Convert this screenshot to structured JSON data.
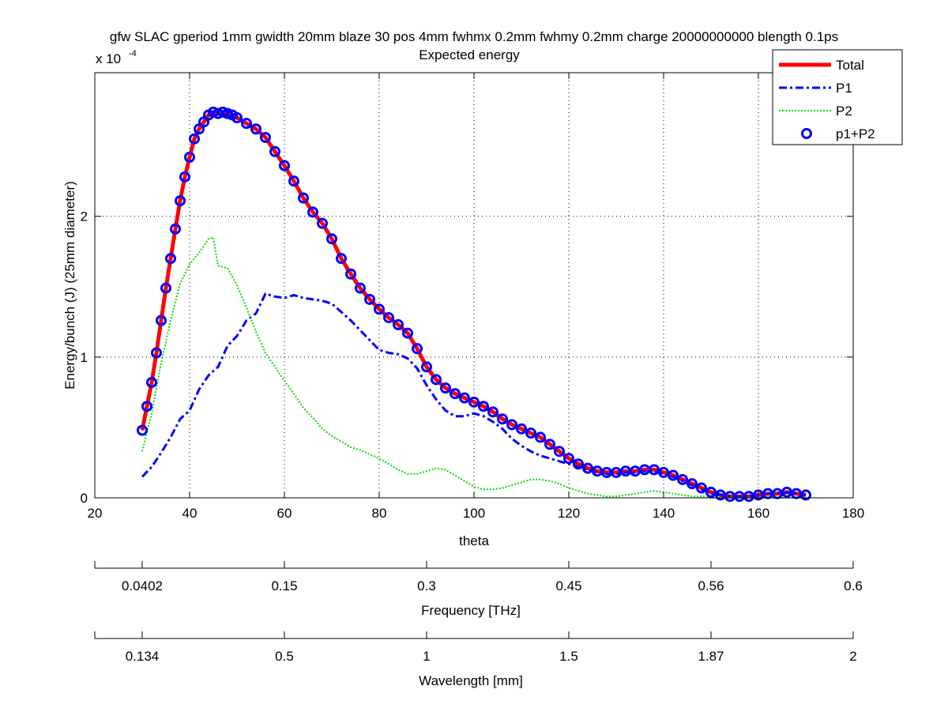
{
  "chart_data": {
    "type": "line",
    "title": "gfw SLAC gperiod 1mm gwidth 20mm blaze 30 pos 4mm fwhmx 0.2mm fwhmy 0.2mm charge 20000000000 blength 0.1ps",
    "subtitle": "Expected energy",
    "xlabel": "theta",
    "ylabel": "Energy/bunch (J) (25mm diameter)",
    "y_exponent_label": "x 10",
    "y_exponent_power": "-4",
    "xlim": [
      20,
      180
    ],
    "ylim": [
      0,
      3.02
    ],
    "xticks": [
      20,
      40,
      60,
      80,
      100,
      120,
      140,
      160,
      180
    ],
    "xtick_labels": [
      "20",
      "40",
      "60",
      "80",
      "100",
      "120",
      "140",
      "160",
      "180"
    ],
    "yticks": [
      0,
      1,
      2
    ],
    "ytick_labels": [
      "0",
      "1",
      "2"
    ],
    "grid": true,
    "legend_position": "top-right",
    "secondary_axes": [
      {
        "label": "Frequency [THz]",
        "tick_theta": [
          30,
          60,
          90,
          120,
          150,
          180
        ],
        "tick_labels": [
          "0.0402",
          "0.15",
          "0.3",
          "0.45",
          "0.56",
          "0.6"
        ]
      },
      {
        "label": "Wavelength [mm]",
        "tick_theta": [
          30,
          60,
          90,
          120,
          150,
          180
        ],
        "tick_labels": [
          "0.134",
          "0.5",
          "1",
          "1.5",
          "1.87",
          "2"
        ]
      }
    ],
    "series": [
      {
        "name": "Total",
        "style": "solid",
        "color": "#ff0000",
        "points": [
          [
            30,
            0.48
          ],
          [
            31,
            0.65
          ],
          [
            32,
            0.82
          ],
          [
            33,
            1.03
          ],
          [
            34,
            1.26
          ],
          [
            35,
            1.49
          ],
          [
            36,
            1.7
          ],
          [
            37,
            1.91
          ],
          [
            38,
            2.11
          ],
          [
            39,
            2.28
          ],
          [
            40,
            2.42
          ],
          [
            41,
            2.55
          ],
          [
            42,
            2.62
          ],
          [
            43,
            2.67
          ],
          [
            44,
            2.72
          ],
          [
            45,
            2.74
          ],
          [
            46,
            2.73
          ],
          [
            47,
            2.74
          ],
          [
            48,
            2.73
          ],
          [
            49,
            2.72
          ],
          [
            50,
            2.7
          ],
          [
            52,
            2.66
          ],
          [
            54,
            2.62
          ],
          [
            56,
            2.56
          ],
          [
            58,
            2.46
          ],
          [
            60,
            2.36
          ],
          [
            62,
            2.25
          ],
          [
            64,
            2.13
          ],
          [
            66,
            2.03
          ],
          [
            68,
            1.95
          ],
          [
            70,
            1.84
          ],
          [
            72,
            1.7
          ],
          [
            74,
            1.59
          ],
          [
            76,
            1.49
          ],
          [
            78,
            1.41
          ],
          [
            80,
            1.34
          ],
          [
            82,
            1.28
          ],
          [
            84,
            1.23
          ],
          [
            86,
            1.17
          ],
          [
            88,
            1.06
          ],
          [
            90,
            0.93
          ],
          [
            92,
            0.84
          ],
          [
            94,
            0.78
          ],
          [
            96,
            0.74
          ],
          [
            98,
            0.71
          ],
          [
            100,
            0.68
          ],
          [
            102,
            0.65
          ],
          [
            104,
            0.61
          ],
          [
            106,
            0.56
          ],
          [
            108,
            0.52
          ],
          [
            110,
            0.49
          ],
          [
            112,
            0.46
          ],
          [
            114,
            0.43
          ],
          [
            116,
            0.38
          ],
          [
            118,
            0.33
          ],
          [
            120,
            0.28
          ],
          [
            122,
            0.24
          ],
          [
            124,
            0.21
          ],
          [
            126,
            0.19
          ],
          [
            128,
            0.18
          ],
          [
            130,
            0.18
          ],
          [
            132,
            0.19
          ],
          [
            134,
            0.19
          ],
          [
            136,
            0.2
          ],
          [
            138,
            0.2
          ],
          [
            140,
            0.18
          ],
          [
            142,
            0.16
          ],
          [
            144,
            0.13
          ],
          [
            146,
            0.1
          ],
          [
            148,
            0.07
          ],
          [
            150,
            0.04
          ],
          [
            152,
            0.02
          ],
          [
            154,
            0.01
          ],
          [
            156,
            0.01
          ],
          [
            158,
            0.01
          ],
          [
            160,
            0.02
          ],
          [
            162,
            0.03
          ],
          [
            164,
            0.03
          ],
          [
            166,
            0.04
          ],
          [
            168,
            0.03
          ],
          [
            170,
            0.02
          ]
        ]
      },
      {
        "name": "P1",
        "style": "dashdot",
        "color": "#0000ff",
        "points": [
          [
            30,
            0.15
          ],
          [
            32,
            0.22
          ],
          [
            34,
            0.32
          ],
          [
            36,
            0.43
          ],
          [
            38,
            0.56
          ],
          [
            40,
            0.62
          ],
          [
            42,
            0.77
          ],
          [
            44,
            0.87
          ],
          [
            46,
            0.93
          ],
          [
            48,
            1.08
          ],
          [
            50,
            1.15
          ],
          [
            52,
            1.26
          ],
          [
            54,
            1.31
          ],
          [
            56,
            1.45
          ],
          [
            58,
            1.43
          ],
          [
            60,
            1.42
          ],
          [
            62,
            1.44
          ],
          [
            64,
            1.42
          ],
          [
            66,
            1.41
          ],
          [
            68,
            1.4
          ],
          [
            70,
            1.38
          ],
          [
            72,
            1.32
          ],
          [
            74,
            1.26
          ],
          [
            76,
            1.19
          ],
          [
            78,
            1.12
          ],
          [
            80,
            1.05
          ],
          [
            82,
            1.03
          ],
          [
            84,
            1.02
          ],
          [
            86,
            0.99
          ],
          [
            88,
            0.92
          ],
          [
            90,
            0.8
          ],
          [
            92,
            0.7
          ],
          [
            94,
            0.62
          ],
          [
            96,
            0.58
          ],
          [
            98,
            0.58
          ],
          [
            100,
            0.6
          ],
          [
            102,
            0.58
          ],
          [
            104,
            0.54
          ],
          [
            106,
            0.49
          ],
          [
            108,
            0.42
          ],
          [
            110,
            0.37
          ],
          [
            112,
            0.33
          ],
          [
            114,
            0.3
          ],
          [
            116,
            0.28
          ],
          [
            118,
            0.26
          ],
          [
            120,
            0.24
          ],
          [
            122,
            0.22
          ],
          [
            124,
            0.2
          ],
          [
            126,
            0.18
          ],
          [
            128,
            0.17
          ],
          [
            130,
            0.17
          ],
          [
            132,
            0.18
          ],
          [
            134,
            0.18
          ],
          [
            136,
            0.19
          ],
          [
            138,
            0.19
          ],
          [
            140,
            0.17
          ],
          [
            142,
            0.15
          ],
          [
            144,
            0.12
          ],
          [
            146,
            0.09
          ],
          [
            148,
            0.06
          ],
          [
            150,
            0.03
          ],
          [
            152,
            0.02
          ],
          [
            154,
            0.01
          ],
          [
            156,
            0.01
          ],
          [
            158,
            0.01
          ],
          [
            160,
            0.02
          ],
          [
            162,
            0.03
          ],
          [
            164,
            0.03
          ],
          [
            166,
            0.04
          ],
          [
            168,
            0.03
          ],
          [
            170,
            0.02
          ]
        ]
      },
      {
        "name": "P2",
        "style": "dotted",
        "color": "#00dd00",
        "points": [
          [
            30,
            0.33
          ],
          [
            32,
            0.6
          ],
          [
            34,
            0.96
          ],
          [
            36,
            1.26
          ],
          [
            38,
            1.52
          ],
          [
            40,
            1.66
          ],
          [
            42,
            1.74
          ],
          [
            44,
            1.84
          ],
          [
            45,
            1.85
          ],
          [
            46,
            1.65
          ],
          [
            48,
            1.63
          ],
          [
            50,
            1.51
          ],
          [
            52,
            1.35
          ],
          [
            54,
            1.18
          ],
          [
            56,
            1.03
          ],
          [
            58,
            0.93
          ],
          [
            60,
            0.83
          ],
          [
            62,
            0.74
          ],
          [
            64,
            0.64
          ],
          [
            66,
            0.57
          ],
          [
            68,
            0.49
          ],
          [
            70,
            0.44
          ],
          [
            72,
            0.4
          ],
          [
            74,
            0.36
          ],
          [
            76,
            0.34
          ],
          [
            78,
            0.31
          ],
          [
            80,
            0.28
          ],
          [
            82,
            0.24
          ],
          [
            84,
            0.2
          ],
          [
            86,
            0.17
          ],
          [
            88,
            0.17
          ],
          [
            90,
            0.19
          ],
          [
            92,
            0.21
          ],
          [
            94,
            0.2
          ],
          [
            96,
            0.16
          ],
          [
            98,
            0.12
          ],
          [
            100,
            0.08
          ],
          [
            102,
            0.06
          ],
          [
            104,
            0.06
          ],
          [
            106,
            0.07
          ],
          [
            108,
            0.09
          ],
          [
            110,
            0.11
          ],
          [
            112,
            0.13
          ],
          [
            114,
            0.13
          ],
          [
            116,
            0.12
          ],
          [
            118,
            0.1
          ],
          [
            120,
            0.07
          ],
          [
            122,
            0.05
          ],
          [
            124,
            0.03
          ],
          [
            126,
            0.02
          ],
          [
            128,
            0.01
          ],
          [
            130,
            0.01
          ],
          [
            132,
            0.02
          ],
          [
            134,
            0.03
          ],
          [
            136,
            0.04
          ],
          [
            138,
            0.05
          ],
          [
            140,
            0.04
          ],
          [
            142,
            0.03
          ],
          [
            144,
            0.02
          ],
          [
            146,
            0.01
          ],
          [
            148,
            0.01
          ],
          [
            150,
            0.0
          ],
          [
            155,
            0.0
          ],
          [
            160,
            0.0
          ],
          [
            165,
            0.0
          ],
          [
            170,
            0.0
          ]
        ]
      },
      {
        "name": "p1+P2",
        "style": "circles",
        "color": "#0000ff",
        "points": [
          [
            30,
            0.48
          ],
          [
            31,
            0.65
          ],
          [
            32,
            0.82
          ],
          [
            33,
            1.03
          ],
          [
            34,
            1.26
          ],
          [
            35,
            1.49
          ],
          [
            36,
            1.7
          ],
          [
            37,
            1.91
          ],
          [
            38,
            2.11
          ],
          [
            39,
            2.28
          ],
          [
            40,
            2.42
          ],
          [
            41,
            2.55
          ],
          [
            42,
            2.62
          ],
          [
            43,
            2.67
          ],
          [
            44,
            2.72
          ],
          [
            45,
            2.74
          ],
          [
            46,
            2.73
          ],
          [
            47,
            2.74
          ],
          [
            48,
            2.73
          ],
          [
            49,
            2.72
          ],
          [
            50,
            2.7
          ],
          [
            52,
            2.66
          ],
          [
            54,
            2.62
          ],
          [
            56,
            2.56
          ],
          [
            58,
            2.46
          ],
          [
            60,
            2.36
          ],
          [
            62,
            2.25
          ],
          [
            64,
            2.13
          ],
          [
            66,
            2.03
          ],
          [
            68,
            1.95
          ],
          [
            70,
            1.84
          ],
          [
            72,
            1.7
          ],
          [
            74,
            1.59
          ],
          [
            76,
            1.49
          ],
          [
            78,
            1.41
          ],
          [
            80,
            1.34
          ],
          [
            82,
            1.28
          ],
          [
            84,
            1.23
          ],
          [
            86,
            1.17
          ],
          [
            88,
            1.06
          ],
          [
            90,
            0.93
          ],
          [
            92,
            0.84
          ],
          [
            94,
            0.78
          ],
          [
            96,
            0.74
          ],
          [
            98,
            0.71
          ],
          [
            100,
            0.68
          ],
          [
            102,
            0.65
          ],
          [
            104,
            0.61
          ],
          [
            106,
            0.56
          ],
          [
            108,
            0.52
          ],
          [
            110,
            0.49
          ],
          [
            112,
            0.46
          ],
          [
            114,
            0.43
          ],
          [
            116,
            0.38
          ],
          [
            118,
            0.33
          ],
          [
            120,
            0.28
          ],
          [
            122,
            0.24
          ],
          [
            124,
            0.21
          ],
          [
            126,
            0.19
          ],
          [
            128,
            0.18
          ],
          [
            130,
            0.18
          ],
          [
            132,
            0.19
          ],
          [
            134,
            0.19
          ],
          [
            136,
            0.2
          ],
          [
            138,
            0.2
          ],
          [
            140,
            0.18
          ],
          [
            142,
            0.16
          ],
          [
            144,
            0.13
          ],
          [
            146,
            0.1
          ],
          [
            148,
            0.07
          ],
          [
            150,
            0.04
          ],
          [
            152,
            0.02
          ],
          [
            154,
            0.01
          ],
          [
            156,
            0.01
          ],
          [
            158,
            0.01
          ],
          [
            160,
            0.02
          ],
          [
            162,
            0.03
          ],
          [
            164,
            0.03
          ],
          [
            166,
            0.04
          ],
          [
            168,
            0.03
          ],
          [
            170,
            0.02
          ]
        ]
      }
    ]
  }
}
